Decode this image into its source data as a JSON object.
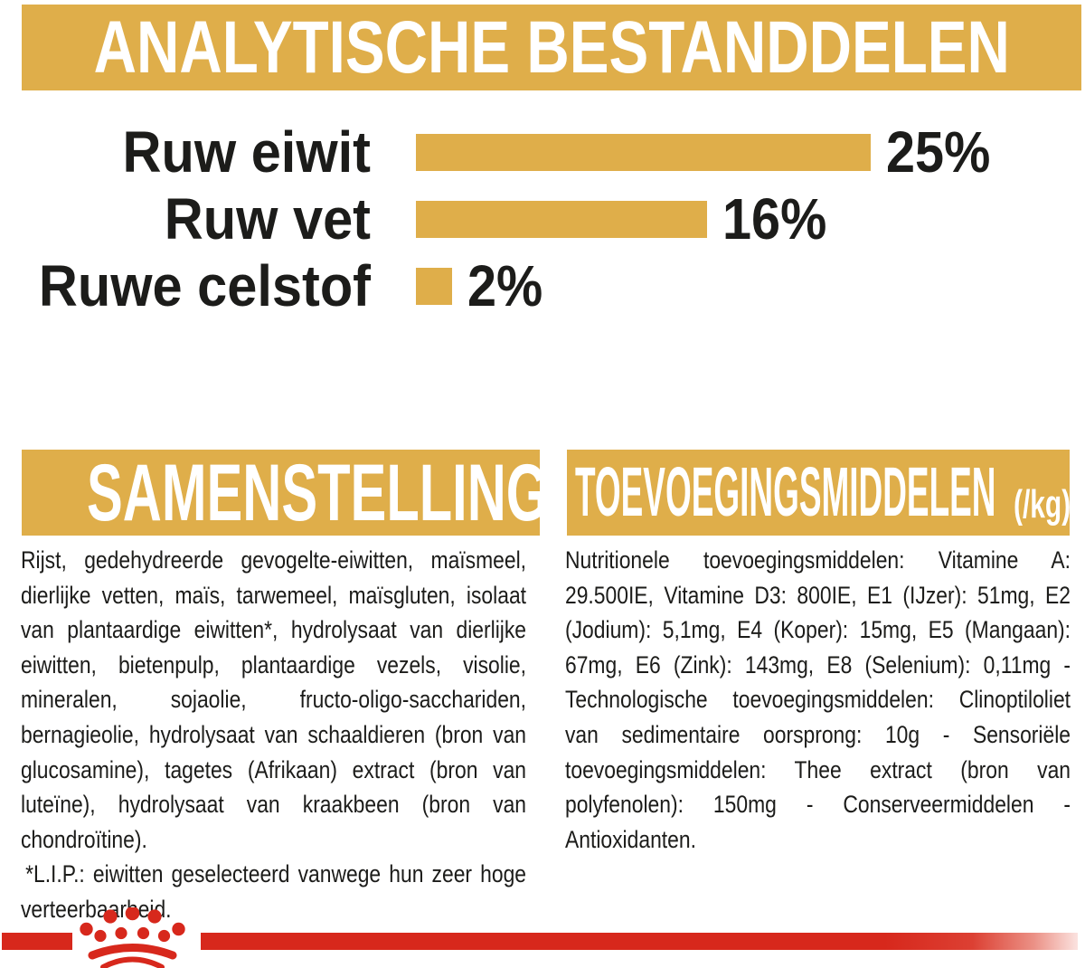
{
  "colors": {
    "gold": "#dfae4a",
    "red": "#d7281c",
    "text": "#1c1c1a",
    "heading_text": "#ffffff",
    "background": "#ffffff"
  },
  "banner": {
    "title": "ANALYTISCHE BESTANDDELEN"
  },
  "chart_data": {
    "type": "bar",
    "orientation": "horizontal",
    "title": "ANALYTISCHE BESTANDDELEN",
    "categories": [
      "Ruw eiwit",
      "Ruw vet",
      "Ruwe celstof"
    ],
    "values": [
      25,
      16,
      2
    ],
    "unit": "%",
    "value_labels": [
      "25%",
      "16%",
      "2%"
    ],
    "xlim": [
      0,
      25
    ],
    "bar_color": "#dfae4a",
    "grid": false,
    "value_label_position": "right-of-bar"
  },
  "sections": {
    "samenstelling": {
      "title": "SAMENSTELLING",
      "body": "Rijst, gedehydreerde gevogelte-eiwitten, maïsmeel, dierlijke vetten, maïs, tarwemeel, maïsgluten, isolaat van plantaardige eiwitten*, hydrolysaat van dierlijke eiwitten, bietenpulp, plantaardige vezels, visolie, mineralen, sojaolie, fructo-oligo-sacchariden, bernagieolie, hydrolysaat van schaaldieren (bron van glucosamine), tagetes (Afrikaan) extract (bron van luteïne), hydrolysaat van kraakbeen (bron van chondroïtine).",
      "footnote": "*L.I.P.: eiwitten geselecteerd vanwege hun zeer hoge verteerbaarheid."
    },
    "toevoegingsmiddelen": {
      "title": "TOEVOEGINGSMIDDELEN",
      "title_suffix": "(/kg)",
      "body": "Nutritionele toevoegingsmiddelen: Vitamine A: 29.500IE, Vitamine D3: 800IE, E1 (IJzer): 51mg, E2 (Jodium): 5,1mg, E4 (Koper): 15mg, E5 (Mangaan): 67mg, E6 (Zink): 143mg, E8 (Selenium): 0,11mg - Technologische toevoegingsmiddelen: Clinoptiloliet van sedimentaire oorsprong: 10g - Sensoriële toevoegingsmiddelen: Thee extract (bron van polyfenolen): 150mg - Conserveermiddelen - Antioxidanten."
    }
  },
  "footer": {
    "brand_logo": "royal-canin-crown-icon",
    "stripe_color": "#d7281c"
  }
}
